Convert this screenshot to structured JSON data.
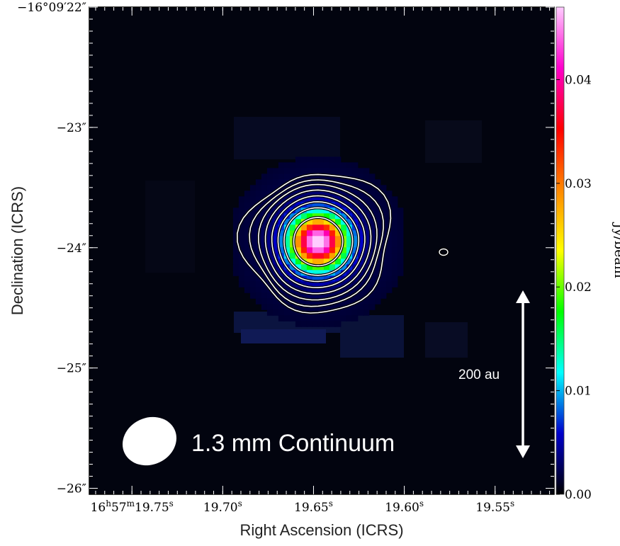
{
  "chart_data": {
    "type": "heatmap",
    "title": "",
    "xlabel": "Right Ascension (ICRS)",
    "ylabel": "Declination (ICRS)",
    "x_ticks": [
      {
        "value": 19.75,
        "label": "16h57m19.75s",
        "parts": [
          "16",
          "h",
          "57",
          "m",
          "19.75",
          "s"
        ]
      },
      {
        "value": 19.7,
        "label": "19.70s",
        "parts": [
          "19.70",
          "s"
        ]
      },
      {
        "value": 19.65,
        "label": "19.65s",
        "parts": [
          "19.65",
          "s"
        ]
      },
      {
        "value": 19.6,
        "label": "19.60s",
        "parts": [
          "19.60",
          "s"
        ]
      },
      {
        "value": 19.55,
        "label": "19.55s",
        "parts": [
          "19.55",
          "s"
        ]
      }
    ],
    "x_range_sec": [
      19.7735,
      19.5175
    ],
    "y_ticks": [
      {
        "value": -22,
        "label": "−16°09′22″"
      },
      {
        "value": -23,
        "label": "−23″"
      },
      {
        "value": -24,
        "label": "−24″"
      },
      {
        "value": -25,
        "label": "−25″"
      },
      {
        "value": -26,
        "label": "−26″"
      }
    ],
    "y_range_arcsec": [
      -26.05,
      -22.0
    ],
    "colorbar": {
      "label": "Jy/beam",
      "range": [
        0.0,
        0.047
      ],
      "ticks": [
        {
          "value": 0.0,
          "label": "0.00"
        },
        {
          "value": 0.01,
          "label": "0.01"
        },
        {
          "value": 0.02,
          "label": "0.02"
        },
        {
          "value": 0.03,
          "label": "0.03"
        },
        {
          "value": 0.04,
          "label": "0.04"
        }
      ],
      "colormap": [
        "#000000",
        "#0000cc",
        "#00ffff",
        "#00ff00",
        "#ffff00",
        "#ff8800",
        "#ff0000",
        "#ff00cc",
        "#ffccff"
      ]
    },
    "source": {
      "ra_sec": 19.6475,
      "dec_arcsec": -23.95,
      "peak": 0.047,
      "fwhm_arcsec": 0.35
    },
    "contour_levels_radii_arcsec": [
      0.2,
      0.28,
      0.33,
      0.38,
      0.43,
      0.48,
      0.53,
      0.59
    ]
  },
  "annotations": {
    "label": "1.3 mm Continuum",
    "scale_bar": "200 au"
  },
  "colors": {
    "background": "#02040f",
    "contour": "#ffffff",
    "beam": "#ffffff"
  }
}
